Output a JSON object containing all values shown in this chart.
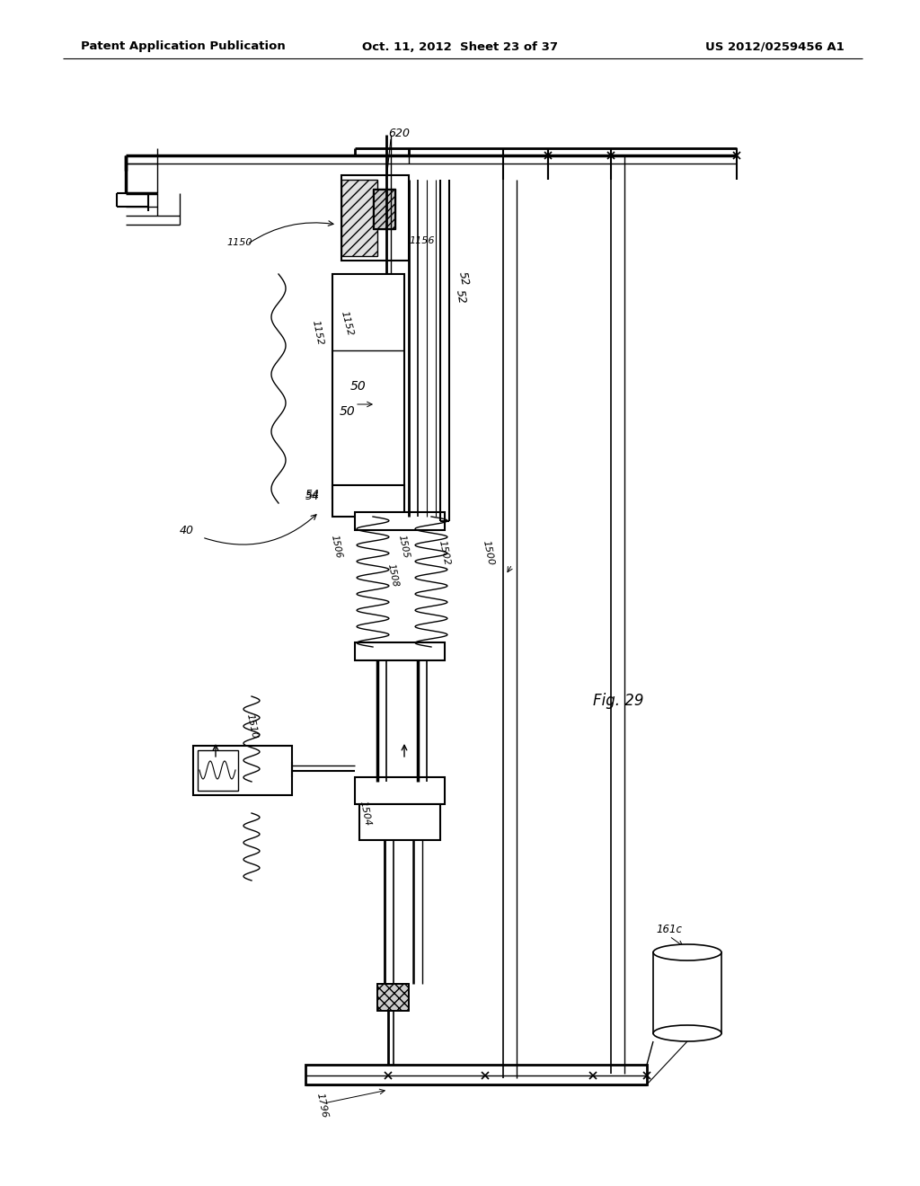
{
  "title_left": "Patent Application Publication",
  "title_center": "Oct. 11, 2012  Sheet 23 of 37",
  "title_right": "US 2012/0259456 A1",
  "fig_label": "Fig. 29",
  "background": "#ffffff"
}
